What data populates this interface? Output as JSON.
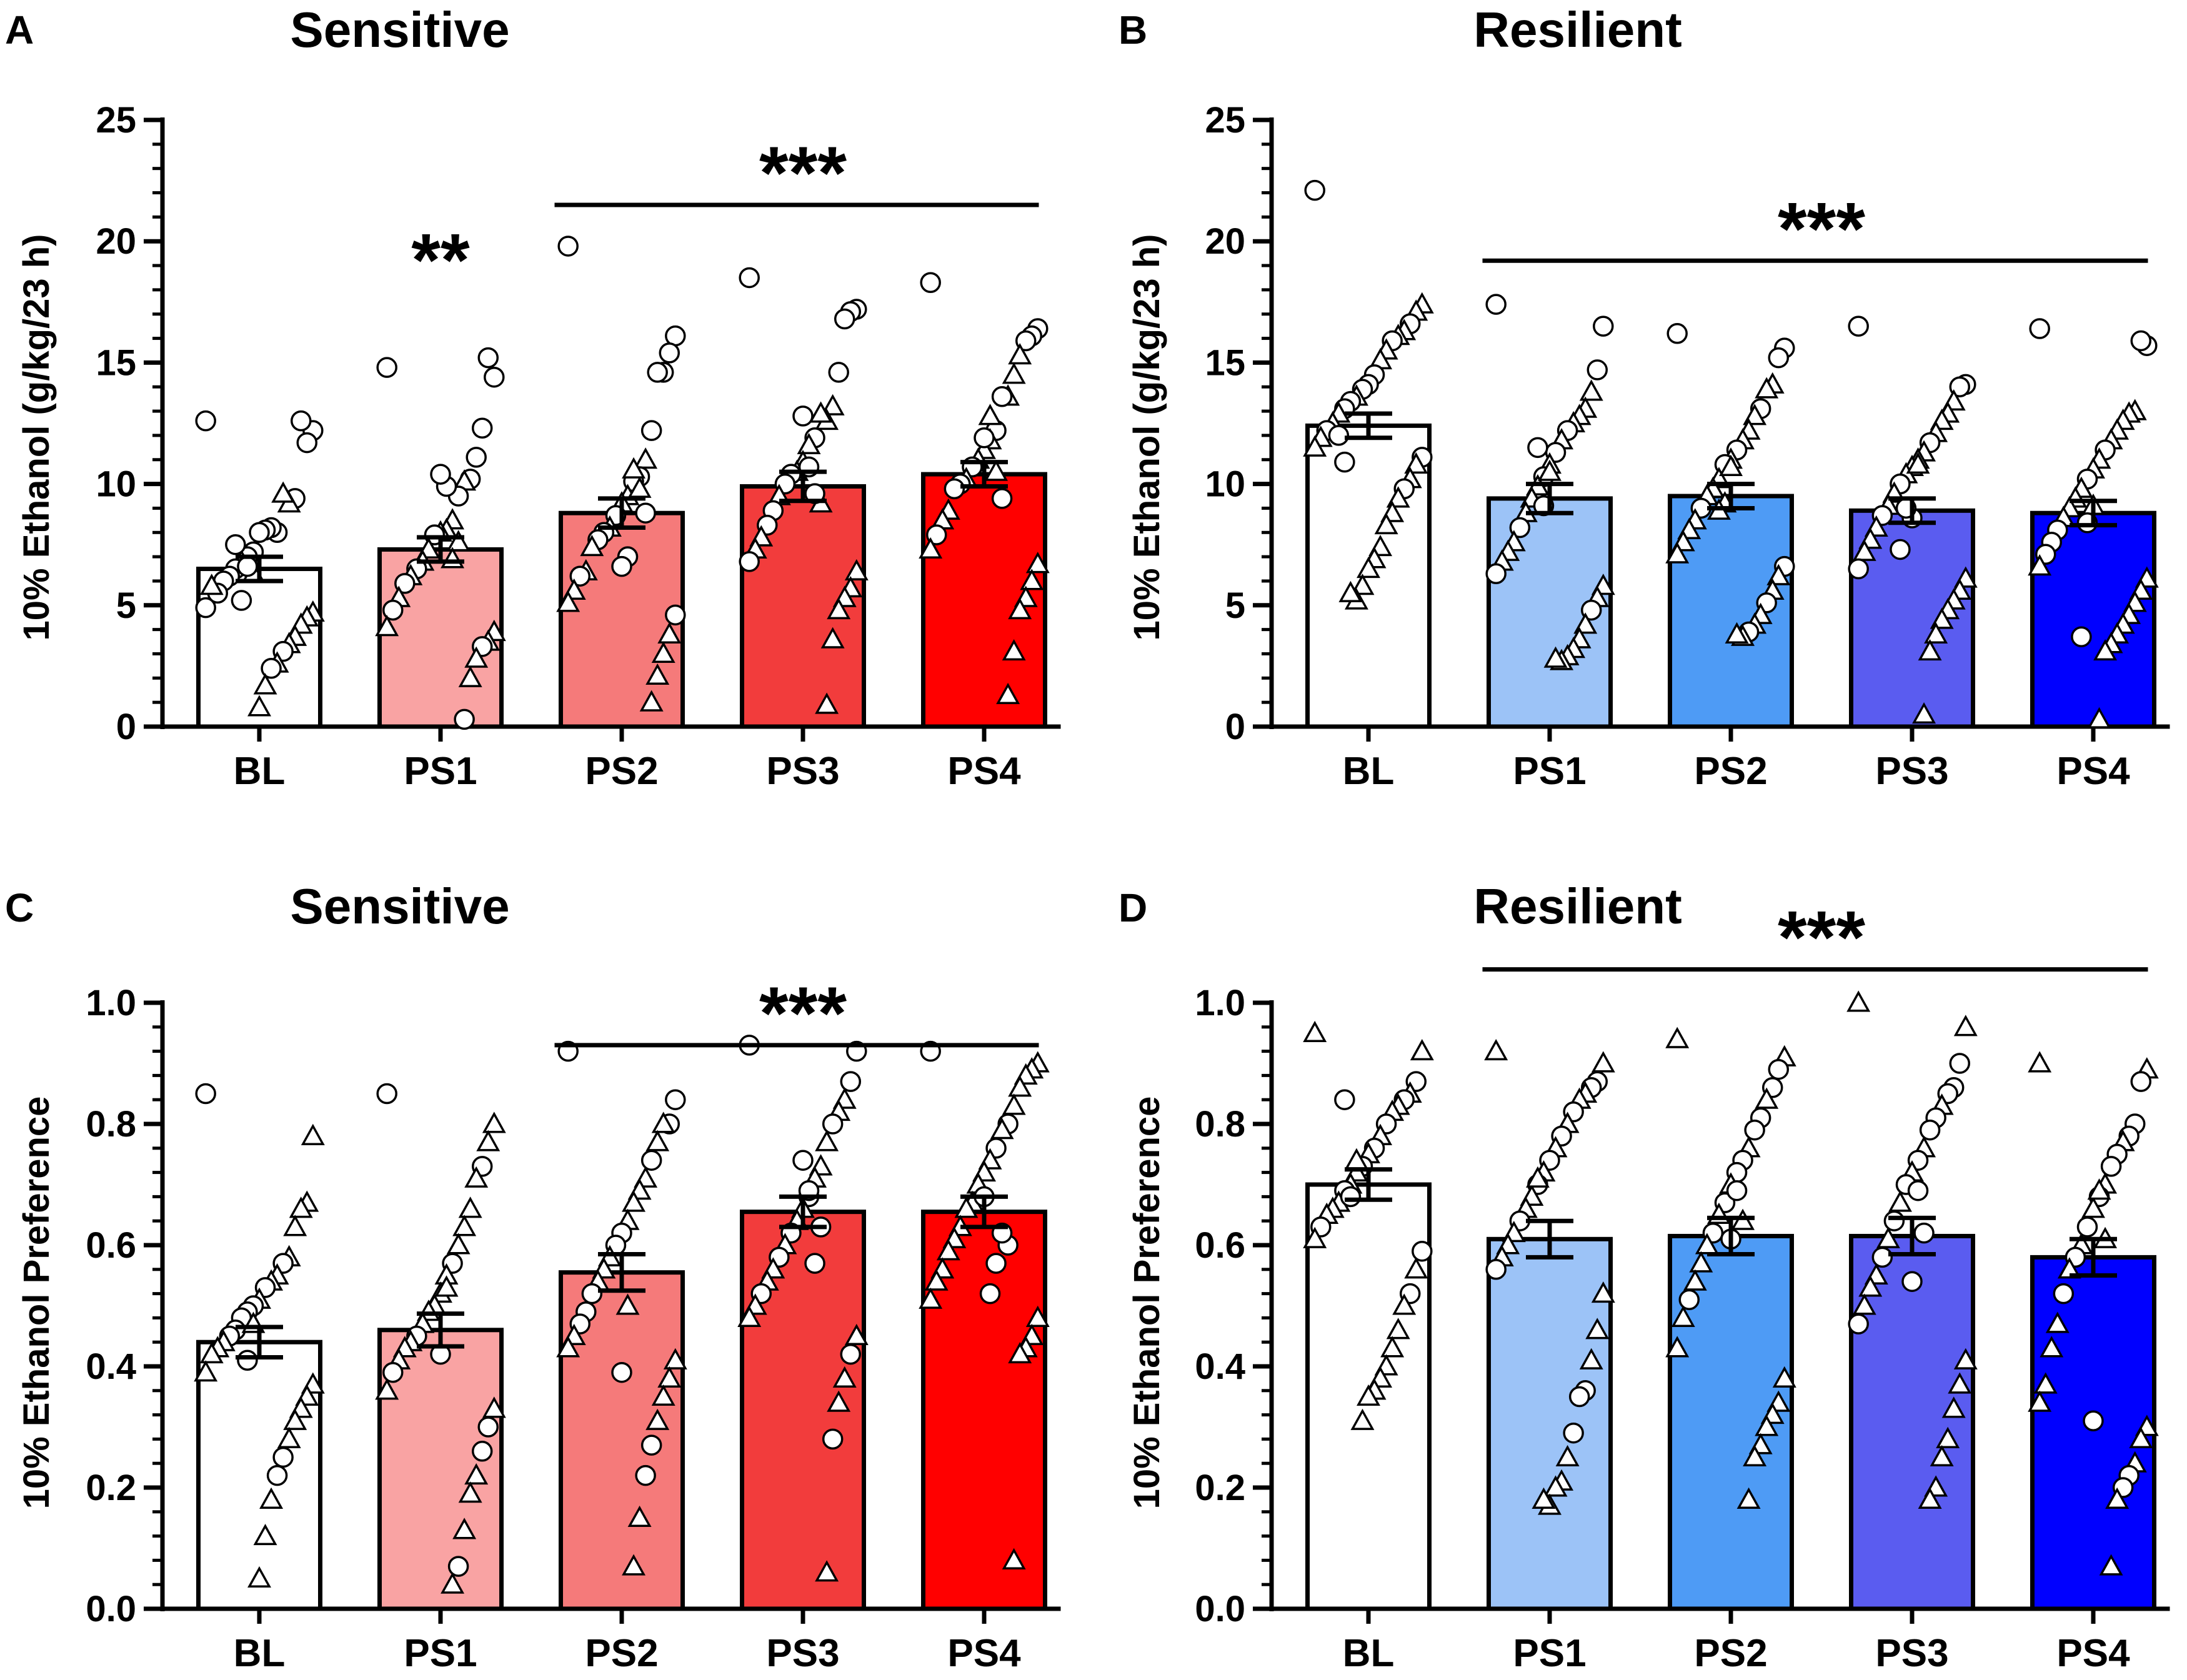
{
  "chart_data": [
    {
      "panel": "A",
      "title": "Sensitive",
      "type": "bar",
      "ylabel": "10% Ethanol (g/kg/23 h)",
      "ylim": [
        0,
        25
      ],
      "yticks": [
        0,
        5,
        10,
        15,
        20,
        25
      ],
      "tick_labels": [
        "0",
        "5",
        "10",
        "15",
        "20",
        "25"
      ],
      "categories": [
        "BL",
        "PS1",
        "PS2",
        "PS3",
        "PS4"
      ],
      "values": [
        6.5,
        7.3,
        8.8,
        9.9,
        10.4
      ],
      "sem": [
        0.5,
        0.5,
        0.6,
        0.6,
        0.5
      ],
      "colors": [
        "#ffffff",
        "#f9a3a3",
        "#f57a7a",
        "#f23c3c",
        "#ff0000"
      ],
      "significance": [
        {
          "label": "**",
          "from": "PS1",
          "to": "PS1",
          "line": false,
          "level": 19.2
        },
        {
          "label": "***",
          "from": "PS2",
          "to": "PS4",
          "line": true,
          "level": 21.5
        }
      ],
      "points": [
        [
          12.6,
          12.2,
          11.7,
          12.6,
          9.4,
          9.2,
          9.6,
          8.0,
          8.2,
          8.1,
          8.0,
          7.2,
          7.0,
          6.8,
          6.5,
          6.2,
          6.0,
          5.5,
          5.8,
          4.9,
          4.7,
          4.5,
          4.2,
          3.7,
          3.4,
          3.1,
          2.6,
          2.4,
          1.7,
          0.8,
          6.3,
          6.6,
          5.2,
          7.5
        ],
        [
          14.8,
          14.4,
          15.2,
          12.3,
          11.1,
          10.2,
          10.1,
          9.5,
          8.5,
          8.1,
          8.0,
          7.9,
          7.3,
          6.8,
          6.5,
          6.2,
          5.9,
          5.3,
          4.8,
          4.1,
          3.9,
          3.5,
          3.3,
          2.8,
          2.0,
          0.3,
          7.6,
          6.9,
          9.9,
          10.4
        ],
        [
          19.8,
          16.1,
          15.4,
          14.6,
          14.6,
          12.2,
          11.0,
          10.3,
          10.1,
          9.5,
          9.2,
          8.7,
          8.2,
          8.0,
          7.7,
          7.4,
          6.4,
          6.2,
          5.6,
          5.1,
          4.6,
          3.8,
          3.0,
          2.1,
          1.0,
          8.8,
          9.8,
          10.6,
          7.0,
          6.6
        ],
        [
          18.5,
          17.2,
          17.1,
          16.8,
          14.6,
          13.2,
          12.6,
          12.9,
          11.9,
          11.6,
          10.9,
          10.5,
          10.4,
          10.0,
          9.5,
          8.9,
          8.3,
          7.8,
          7.3,
          6.8,
          6.4,
          5.7,
          5.3,
          4.8,
          3.6,
          0.9,
          9.2,
          9.6,
          10.7,
          12.8
        ],
        [
          18.3,
          16.4,
          16.1,
          15.9,
          15.3,
          14.5,
          13.6,
          13.6,
          12.2,
          11.8,
          11.4,
          11.0,
          10.7,
          10.2,
          10.0,
          9.8,
          8.9,
          8.5,
          7.9,
          7.3,
          6.7,
          6.0,
          5.3,
          4.8,
          3.1,
          1.3,
          9.4,
          10.5,
          12.8,
          11.9
        ]
      ],
      "point_shapes": [
        "ococcttoooocotoocototttttototttocot",
        "oooooototttottotototttottottoottoo",
        "ooooootoottotoottottottttottooott",
        "oooootttotttootoottotttttttoooot",
        "ooootttootttotoottotttttttottooo"
      ]
    },
    {
      "panel": "B",
      "title": "Resilient",
      "type": "bar",
      "ylabel": "10% Ethanol (g/kg/23 h)",
      "ylim": [
        0,
        25
      ],
      "yticks": [
        0,
        5,
        10,
        15,
        20,
        25
      ],
      "tick_labels": [
        "0",
        "5",
        "10",
        "15",
        "20",
        "25"
      ],
      "categories": [
        "BL",
        "PS1",
        "PS2",
        "PS3",
        "PS4"
      ],
      "values": [
        12.4,
        9.4,
        9.5,
        8.9,
        8.8
      ],
      "sem": [
        0.5,
        0.6,
        0.5,
        0.5,
        0.5
      ],
      "colors": [
        "#ffffff",
        "#9cc3f7",
        "#4e9bf5",
        "#5a5cf0",
        "#0000ff"
      ],
      "significance": [
        {
          "label": "***",
          "from": "PS1",
          "to": "PS4",
          "line": true,
          "level": 19.2
        }
      ],
      "points": [
        [
          22.1,
          17.4,
          17.1,
          16.6,
          16.3,
          16.1,
          15.9,
          15.5,
          15.1,
          14.5,
          14.1,
          13.9,
          13.6,
          13.4,
          13.1,
          12.9,
          12.5,
          12.2,
          11.9,
          11.5,
          11.1,
          10.8,
          10.2,
          9.8,
          9.4,
          8.8,
          8.3,
          7.4,
          6.9,
          6.5,
          5.8,
          5.2,
          5.5,
          10.9,
          12.0
        ],
        [
          17.4,
          16.5,
          14.7,
          13.8,
          13.1,
          12.8,
          12.5,
          12.2,
          11.8,
          11.3,
          10.8,
          10.3,
          9.9,
          9.4,
          8.8,
          8.2,
          7.6,
          7.2,
          6.8,
          6.3,
          5.8,
          5.3,
          4.8,
          4.2,
          3.6,
          3.2,
          2.9,
          2.7,
          2.8,
          10.5,
          9.1,
          11.5
        ],
        [
          16.2,
          15.6,
          15.2,
          14.1,
          13.9,
          13.1,
          12.8,
          12.2,
          11.8,
          11.4,
          11.0,
          10.8,
          10.2,
          9.8,
          9.5,
          9.0,
          8.5,
          8.1,
          7.6,
          7.1,
          6.6,
          6.2,
          5.6,
          5.1,
          4.6,
          4.2,
          3.9,
          3.7,
          3.8,
          10.7,
          9.2,
          8.9
        ],
        [
          16.5,
          14.1,
          14.0,
          13.4,
          12.9,
          12.6,
          12.1,
          11.7,
          11.3,
          11.0,
          10.7,
          10.4,
          10.0,
          9.6,
          9.1,
          8.7,
          8.2,
          7.7,
          7.2,
          6.5,
          6.1,
          5.6,
          5.2,
          4.8,
          4.4,
          3.8,
          3.1,
          0.5,
          10.8,
          8.6,
          9.0,
          7.3
        ],
        [
          16.4,
          15.7,
          15.9,
          13.0,
          12.9,
          12.6,
          12.2,
          11.8,
          11.4,
          11.0,
          10.6,
          10.2,
          9.8,
          9.4,
          9.0,
          8.6,
          8.1,
          7.6,
          7.1,
          6.6,
          6.1,
          5.6,
          5.1,
          4.6,
          4.2,
          3.8,
          3.4,
          3.1,
          0.3,
          9.1,
          8.4,
          3.7
        ]
      ],
      "point_shapes": [
        "ottottottoootoottottottotttttttttoo",
        "ooottttotototttotttottotttttttoot",
        "ooottotttototttottttottottotttttoo",
        "ooottttottttottotttotttttttttooo",
        "oootttttottottttoootttttttttttoo"
      ]
    },
    {
      "panel": "C",
      "title": "Sensitive",
      "type": "bar",
      "ylabel": "10% Ethanol Preference",
      "ylim": [
        0,
        1
      ],
      "yticks": [
        0,
        0.2,
        0.4,
        0.6,
        0.8,
        1.0
      ],
      "tick_labels": [
        "0.0",
        "0.2",
        "0.4",
        "0.6",
        "0.8",
        "1.0"
      ],
      "categories": [
        "BL",
        "PS1",
        "PS2",
        "PS3",
        "PS4"
      ],
      "values": [
        0.44,
        0.46,
        0.555,
        0.655,
        0.655
      ],
      "sem": [
        0.025,
        0.027,
        0.03,
        0.025,
        0.025
      ],
      "colors": [
        "#ffffff",
        "#f9a3a3",
        "#f57a7a",
        "#f23c3c",
        "#ff0000"
      ],
      "significance": [
        {
          "label": "***",
          "from": "PS2",
          "to": "PS4",
          "line": true,
          "level": 0.93
        }
      ],
      "points": [
        [
          0.85,
          0.78,
          0.67,
          0.66,
          0.63,
          0.58,
          0.57,
          0.55,
          0.54,
          0.53,
          0.51,
          0.5,
          0.49,
          0.48,
          0.46,
          0.45,
          0.44,
          0.43,
          0.42,
          0.39,
          0.37,
          0.35,
          0.33,
          0.31,
          0.28,
          0.25,
          0.22,
          0.18,
          0.12,
          0.05,
          0.47,
          0.41
        ],
        [
          0.85,
          0.8,
          0.77,
          0.73,
          0.71,
          0.66,
          0.63,
          0.6,
          0.57,
          0.55,
          0.52,
          0.5,
          0.49,
          0.47,
          0.45,
          0.44,
          0.43,
          0.41,
          0.39,
          0.36,
          0.33,
          0.3,
          0.26,
          0.22,
          0.19,
          0.13,
          0.07,
          0.04,
          0.53,
          0.42
        ],
        [
          0.92,
          0.84,
          0.8,
          0.8,
          0.77,
          0.74,
          0.71,
          0.69,
          0.67,
          0.64,
          0.62,
          0.6,
          0.58,
          0.56,
          0.54,
          0.52,
          0.49,
          0.47,
          0.45,
          0.43,
          0.41,
          0.38,
          0.35,
          0.31,
          0.27,
          0.22,
          0.15,
          0.07,
          0.5,
          0.39
        ],
        [
          0.93,
          0.92,
          0.87,
          0.84,
          0.82,
          0.8,
          0.77,
          0.73,
          0.71,
          0.68,
          0.66,
          0.64,
          0.62,
          0.6,
          0.58,
          0.56,
          0.54,
          0.52,
          0.5,
          0.48,
          0.45,
          0.42,
          0.38,
          0.34,
          0.28,
          0.06,
          0.63,
          0.57,
          0.69,
          0.74
        ],
        [
          0.92,
          0.9,
          0.89,
          0.88,
          0.86,
          0.83,
          0.8,
          0.79,
          0.76,
          0.74,
          0.72,
          0.7,
          0.67,
          0.66,
          0.63,
          0.61,
          0.59,
          0.56,
          0.54,
          0.51,
          0.48,
          0.45,
          0.43,
          0.42,
          0.08,
          0.6,
          0.62,
          0.57,
          0.52,
          0.68
        ]
      ],
      "point_shapes": [
        "otttttottotoooootttttttttoottttooo",
        "ottottttotttttotttottootttottoo",
        "ooottottttootttooottttttootttoo",
        "ooottotttottotottotttottotoooo",
        "otttttotottttttttttttttttooooo"
      ]
    },
    {
      "panel": "D",
      "title": "Resilient",
      "type": "bar",
      "ylabel": "10% Ethanol Preference",
      "ylim": [
        0,
        1
      ],
      "yticks": [
        0,
        0.2,
        0.4,
        0.6,
        0.8,
        1.0
      ],
      "tick_labels": [
        "0.0",
        "0.2",
        "0.4",
        "0.6",
        "0.8",
        "1.0"
      ],
      "categories": [
        "BL",
        "PS1",
        "PS2",
        "PS3",
        "PS4"
      ],
      "values": [
        0.7,
        0.61,
        0.615,
        0.615,
        0.58
      ],
      "sem": [
        0.025,
        0.03,
        0.03,
        0.03,
        0.03
      ],
      "colors": [
        "#ffffff",
        "#9cc3f7",
        "#4e9bf5",
        "#5a5cf0",
        "#0000ff"
      ],
      "significance": [
        {
          "label": "***",
          "from": "PS1",
          "to": "PS4",
          "line": true,
          "level": 1.055
        }
      ],
      "points": [
        [
          0.95,
          0.92,
          0.87,
          0.85,
          0.84,
          0.83,
          0.82,
          0.8,
          0.78,
          0.76,
          0.75,
          0.73,
          0.72,
          0.7,
          0.69,
          0.67,
          0.66,
          0.65,
          0.63,
          0.61,
          0.59,
          0.56,
          0.52,
          0.5,
          0.46,
          0.43,
          0.4,
          0.38,
          0.36,
          0.35,
          0.31,
          0.74,
          0.68,
          0.84
        ],
        [
          0.92,
          0.9,
          0.87,
          0.86,
          0.85,
          0.84,
          0.82,
          0.8,
          0.78,
          0.76,
          0.74,
          0.72,
          0.7,
          0.68,
          0.66,
          0.64,
          0.62,
          0.6,
          0.58,
          0.56,
          0.52,
          0.46,
          0.41,
          0.36,
          0.35,
          0.29,
          0.25,
          0.21,
          0.2,
          0.17,
          0.18,
          0.71
        ],
        [
          0.94,
          0.91,
          0.89,
          0.86,
          0.84,
          0.81,
          0.79,
          0.76,
          0.74,
          0.72,
          0.7,
          0.67,
          0.65,
          0.62,
          0.6,
          0.57,
          0.54,
          0.51,
          0.48,
          0.43,
          0.38,
          0.34,
          0.32,
          0.3,
          0.27,
          0.25,
          0.18,
          0.64,
          0.69,
          0.61
        ],
        [
          1.0,
          0.96,
          0.9,
          0.86,
          0.85,
          0.83,
          0.81,
          0.79,
          0.76,
          0.74,
          0.72,
          0.7,
          0.67,
          0.64,
          0.61,
          0.58,
          0.55,
          0.53,
          0.5,
          0.47,
          0.41,
          0.37,
          0.33,
          0.28,
          0.25,
          0.2,
          0.18,
          0.62,
          0.69,
          0.54
        ],
        [
          0.9,
          0.89,
          0.87,
          0.8,
          0.78,
          0.77,
          0.75,
          0.73,
          0.7,
          0.68,
          0.66,
          0.63,
          0.6,
          0.58,
          0.56,
          0.52,
          0.47,
          0.43,
          0.37,
          0.34,
          0.3,
          0.28,
          0.24,
          0.22,
          0.2,
          0.18,
          0.07,
          0.61,
          0.69,
          0.31
        ]
      ],
      "point_shapes": [
        "ttotottototottotttotototttttttttooo",
        "ttoottotototottotttotttooottttttto",
        "ttootootootototttottttttttttooo",
        "ttoootootototototttotttttttooo",
        "ttoootootototototttttttoottttoo"
      ]
    }
  ]
}
